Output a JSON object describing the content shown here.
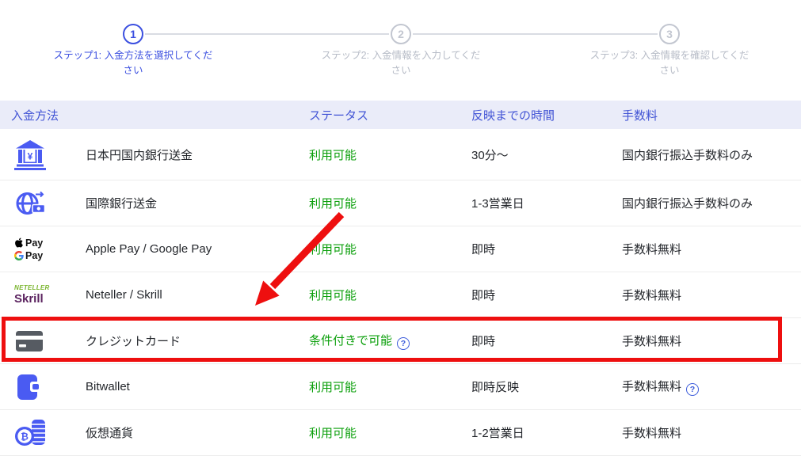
{
  "stepper": {
    "steps": [
      {
        "number": "1",
        "label_line1": "ステップ1: 入金方法を選択してくだ",
        "label_line2": "さい",
        "state": "active"
      },
      {
        "number": "2",
        "label_line1": "ステップ2: 入金情報を入力してくだ",
        "label_line2": "さい",
        "state": "upcoming"
      },
      {
        "number": "3",
        "label_line1": "ステップ3: 入金情報を確認してくだ",
        "label_line2": "さい",
        "state": "upcoming"
      }
    ]
  },
  "table": {
    "headers": [
      "入金方法",
      "ステータス",
      "反映までの時間",
      "手数料"
    ],
    "help_symbol": "?",
    "rows": [
      {
        "icon": "bank-yen-icon",
        "method": "日本円国内銀行送金",
        "status": "利用可能",
        "status_help": false,
        "time": "30分〜",
        "fee": "国内銀行振込手数料のみ",
        "fee_help": false,
        "highlighted": false
      },
      {
        "icon": "globe-transfer-icon",
        "method": "国際銀行送金",
        "status": "利用可能",
        "status_help": false,
        "time": "1-3営業日",
        "fee": "国内銀行振込手数料のみ",
        "fee_help": false,
        "highlighted": false
      },
      {
        "icon": "apple-google-pay-logo",
        "method": "Apple Pay / Google Pay",
        "status": "利用可能",
        "status_help": false,
        "time": "即時",
        "fee": "手数料無料",
        "fee_help": false,
        "highlighted": false,
        "logo_lines": {
          "apple": "Pay",
          "google": "Pay"
        }
      },
      {
        "icon": "neteller-skrill-logo",
        "method": "Neteller / Skrill",
        "status": "利用可能",
        "status_help": false,
        "time": "即時",
        "fee": "手数料無料",
        "fee_help": false,
        "highlighted": false,
        "logo_lines": {
          "neteller": "NETELLER",
          "skrill": "Skrill"
        }
      },
      {
        "icon": "credit-card-icon",
        "method": "クレジットカード",
        "status": "条件付きで可能",
        "status_help": true,
        "time": "即時",
        "fee": "手数料無料",
        "fee_help": false,
        "highlighted": true
      },
      {
        "icon": "bitwallet-icon",
        "method": "Bitwallet",
        "status": "利用可能",
        "status_help": false,
        "time": "即時反映",
        "fee": "手数料無料",
        "fee_help": true,
        "highlighted": false
      },
      {
        "icon": "crypto-coins-icon",
        "method": "仮想通貨",
        "status": "利用可能",
        "status_help": false,
        "time": "1-2営業日",
        "fee": "手数料無料",
        "fee_help": false,
        "highlighted": false
      }
    ]
  },
  "colors": {
    "accent_blue": "#3c50e0",
    "header_bg": "#eaecf9",
    "header_text": "#4254d5",
    "status_green": "#0da00d",
    "highlight_red": "#ee0f0f",
    "inactive_gray": "#c2c6d0",
    "icon_blue": "#4a5bf2"
  }
}
